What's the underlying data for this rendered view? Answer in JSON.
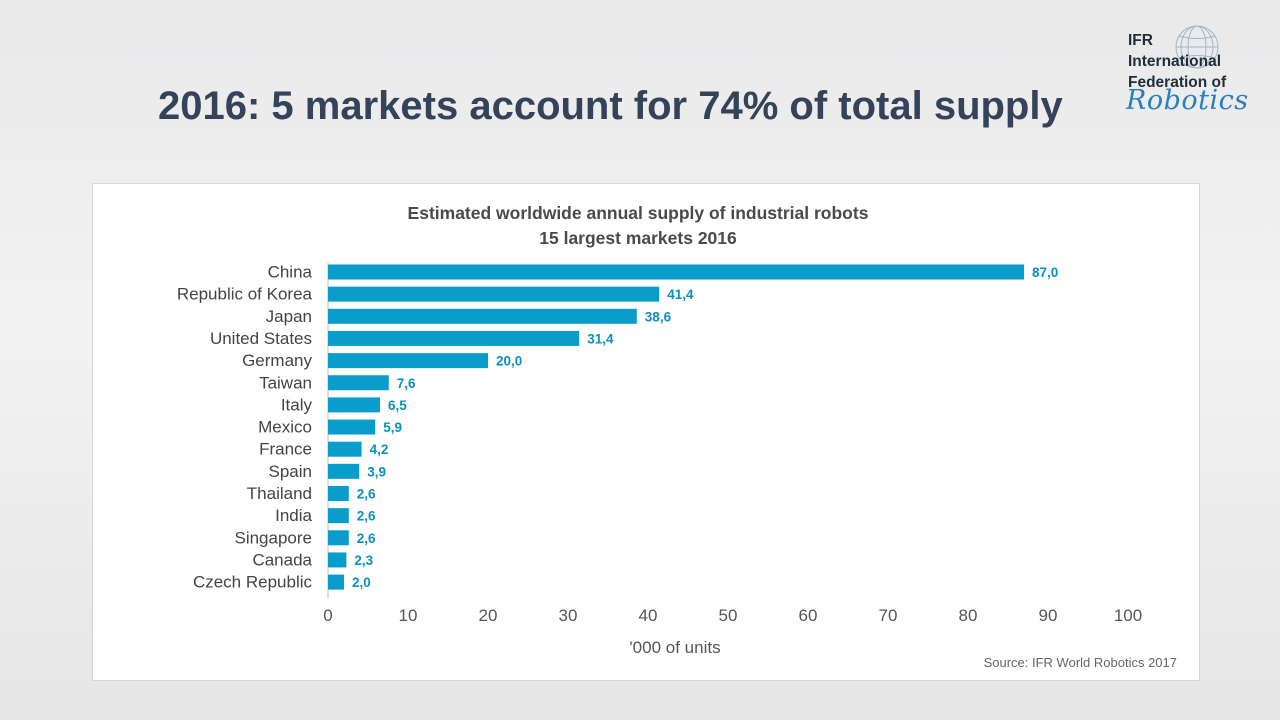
{
  "slide": {
    "title": "2016: 5 markets account for 74% of total supply"
  },
  "logo": {
    "line1": "IFR",
    "line2": "International",
    "line3": "Federation of",
    "script": "Robotics"
  },
  "chart_data": {
    "type": "bar",
    "orientation": "horizontal",
    "title": "Estimated worldwide  annual supply of industrial robots",
    "subtitle": "15 largest markets 2016",
    "categories": [
      "China",
      "Republic of Korea",
      "Japan",
      "United States",
      "Germany",
      "Taiwan",
      "Italy",
      "Mexico",
      "France",
      "Spain",
      "Thailand",
      "India",
      "Singapore",
      "Canada",
      "Czech Republic"
    ],
    "values": [
      87.0,
      41.4,
      38.6,
      31.4,
      20.0,
      7.6,
      6.5,
      5.9,
      4.2,
      3.9,
      2.6,
      2.6,
      2.6,
      2.3,
      2.0
    ],
    "value_labels": [
      "87,0",
      "41,4",
      "38,6",
      "31,4",
      "20,0",
      "7,6",
      "6,5",
      "5,9",
      "4,2",
      "3,9",
      "2,6",
      "2,6",
      "2,6",
      "2,3",
      "2,0"
    ],
    "xlabel": "'000 of units",
    "xlim": [
      0,
      100
    ],
    "xticks": [
      0,
      10,
      20,
      30,
      40,
      50,
      60,
      70,
      80,
      90,
      100
    ],
    "bar_color": "#0a9dcb",
    "label_color": "#0a8fbf",
    "grid": false,
    "legend": "none"
  },
  "source": "Source: IFR World Robotics 2017"
}
